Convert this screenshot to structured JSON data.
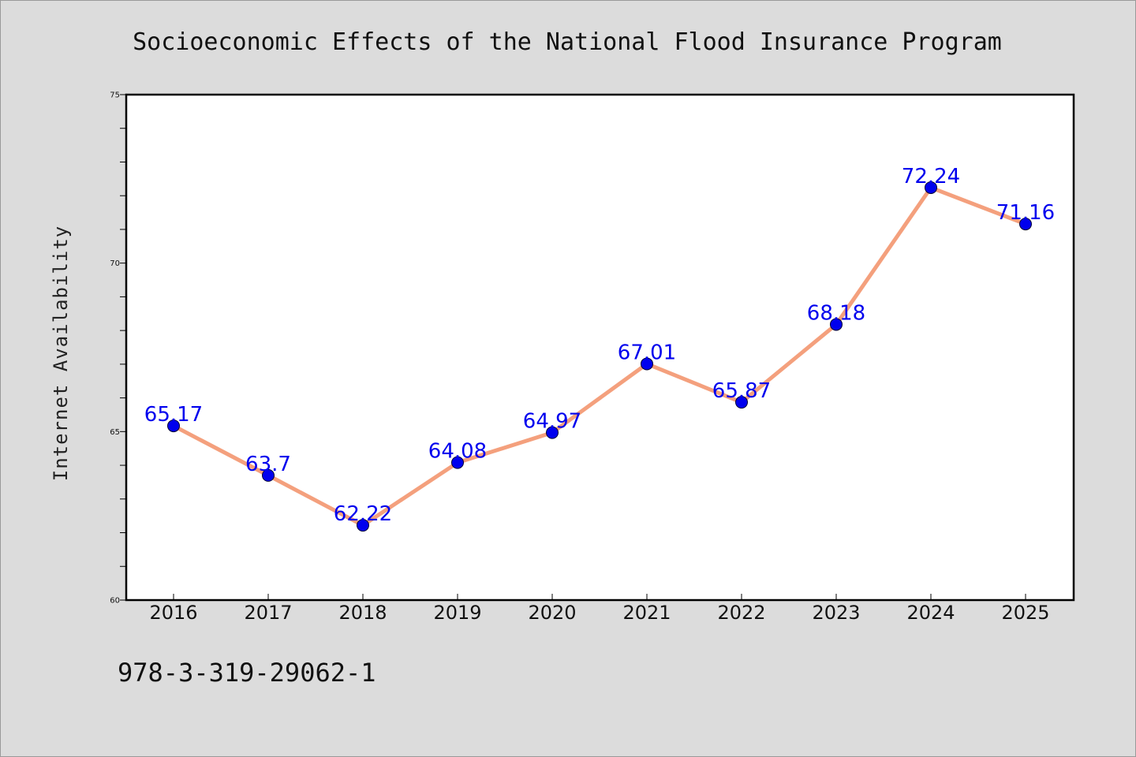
{
  "chart_data": {
    "type": "line",
    "title": "Socioeconomic Effects of the National Flood Insurance Program",
    "xlabel": "",
    "ylabel": "Internet Availability",
    "categories": [
      "2016",
      "2017",
      "2018",
      "2019",
      "2020",
      "2021",
      "2022",
      "2023",
      "2024",
      "2025"
    ],
    "series": [
      {
        "values": [
          65.17,
          63.7,
          62.22,
          64.08,
          64.97,
          67.01,
          65.87,
          68.18,
          72.24,
          71.16
        ],
        "data_labels": [
          "65.17",
          "63.7",
          "62.22",
          "64.08",
          "64.97",
          "67.01",
          "65.87",
          "68.18",
          "72.24",
          "71.16"
        ]
      }
    ],
    "ylim": [
      60,
      75
    ],
    "yticks": [
      60,
      65,
      70,
      75
    ],
    "yticklabels": [
      "60",
      "65",
      "70",
      "75"
    ],
    "grid": false,
    "legend": "none",
    "colors": {
      "line": "#f4a07d",
      "marker": "#0000ee",
      "label": "#0000ee",
      "plot_bg": "#ffffff",
      "figure_bg": "#dcdcdc"
    }
  },
  "footer": {
    "isbn": "978-3-319-29062-1"
  }
}
